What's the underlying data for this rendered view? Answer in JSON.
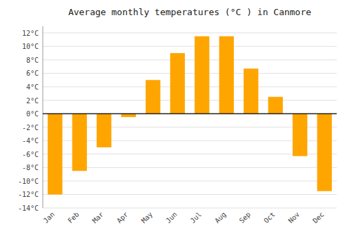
{
  "chart_data": {
    "type": "bar",
    "title": "Average monthly temperatures (°C ) in Canmore",
    "categories": [
      "Jan",
      "Feb",
      "Mar",
      "Apr",
      "May",
      "Jun",
      "Jul",
      "Aug",
      "Sep",
      "Oct",
      "Nov",
      "Dec"
    ],
    "values": [
      -12.0,
      -8.5,
      -5.0,
      -0.5,
      5.0,
      9.0,
      11.5,
      11.5,
      6.7,
      2.5,
      -6.3,
      -11.5
    ],
    "color": "#FFA500",
    "ylim": [
      -14,
      13
    ],
    "yticks": [
      {
        "value": -14,
        "label": "-14°C"
      },
      {
        "value": -12,
        "label": "-12°C"
      },
      {
        "value": -10,
        "label": "-10°C"
      },
      {
        "value": -8,
        "label": "-8°C"
      },
      {
        "value": -6,
        "label": "-6°C"
      },
      {
        "value": -4,
        "label": "-4°C"
      },
      {
        "value": -2,
        "label": "-2°C"
      },
      {
        "value": 0,
        "label": "0°C"
      },
      {
        "value": 2,
        "label": "2°C"
      },
      {
        "value": 4,
        "label": "4°C"
      },
      {
        "value": 6,
        "label": "6°C"
      },
      {
        "value": 8,
        "label": "8°C"
      },
      {
        "value": 10,
        "label": "10°C"
      },
      {
        "value": 12,
        "label": "12°C"
      }
    ],
    "grid": true
  }
}
